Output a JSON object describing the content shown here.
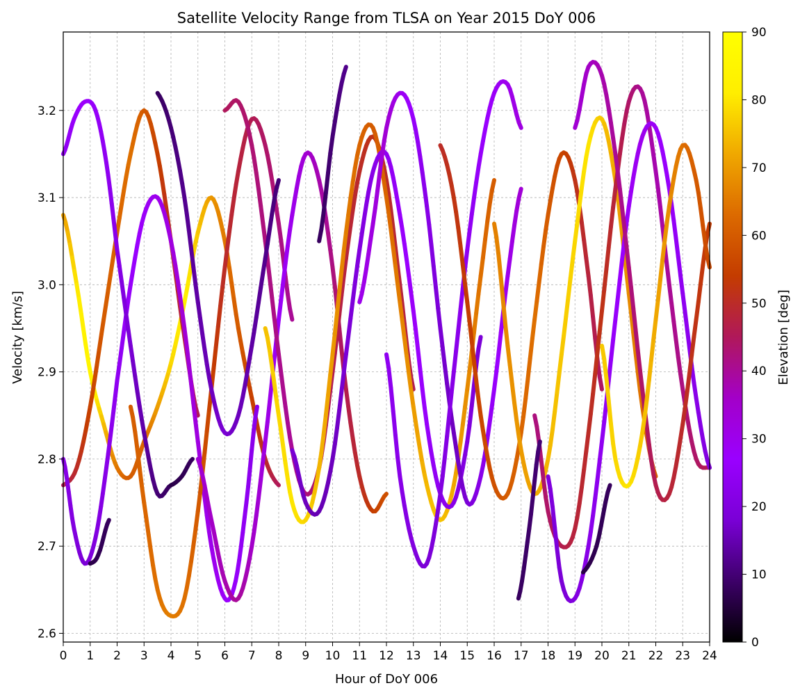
{
  "chart_data": {
    "type": "scatter",
    "title": "Satellite Velocity Range from TLSA on Year 2015 DoY 006",
    "xlabel": "Hour of DoY 006",
    "ylabel": "Velocity [km/s]",
    "xlim": [
      0,
      24
    ],
    "ylim": [
      2.59,
      3.29
    ],
    "xticks": [
      0,
      1,
      2,
      3,
      4,
      5,
      6,
      7,
      8,
      9,
      10,
      11,
      12,
      13,
      14,
      15,
      16,
      17,
      18,
      19,
      20,
      21,
      22,
      23,
      24
    ],
    "xtick_labels": [
      "0",
      "1",
      "2",
      "3",
      "4",
      "5",
      "6",
      "7",
      "8",
      "9",
      "10",
      "11",
      "12",
      "13",
      "14",
      "15",
      "16",
      "17",
      "18",
      "19",
      "20",
      "21",
      "22",
      "23",
      "24"
    ],
    "yticks": [
      2.6,
      2.7,
      2.8,
      2.9,
      3.0,
      3.1,
      3.2
    ],
    "ytick_labels": [
      "2.6",
      "2.7",
      "2.8",
      "2.9",
      "3.0",
      "3.1",
      "3.2"
    ],
    "grid": true,
    "colorbar": {
      "label": "Elevation [deg]",
      "range": [
        0,
        90
      ],
      "ticks": [
        0,
        10,
        20,
        30,
        40,
        50,
        60,
        70,
        80,
        90
      ],
      "tick_labels": [
        "0",
        "10",
        "20",
        "30",
        "40",
        "50",
        "60",
        "70",
        "80",
        "90"
      ],
      "colormap": "gnuplot",
      "stops": [
        "#000000",
        "#3d0069",
        "#7a00d6",
        "#9a00ff",
        "#a300c8",
        "#b0185a",
        "#c43c00",
        "#dc6a00",
        "#f0a800",
        "#ffee00",
        "#ffff00"
      ]
    },
    "series": [
      {
        "x": [
          0.0,
          0.5,
          1.0,
          1.5,
          2.0,
          2.5,
          3.0,
          3.5,
          4.0,
          4.5,
          5.0,
          5.5,
          6.0,
          6.5,
          7.0,
          7.5,
          8.0
        ],
        "y": [
          3.08,
          3.0,
          2.9,
          2.84,
          2.79,
          2.78,
          2.82,
          2.86,
          2.91,
          2.98,
          3.06,
          3.1,
          3.05,
          2.95,
          2.87,
          2.8,
          2.77
        ],
        "elev": [
          70,
          80,
          85,
          75,
          65,
          60,
          62,
          70,
          78,
          82,
          76,
          70,
          65,
          60,
          55,
          50,
          45
        ]
      },
      {
        "x": [
          0.0,
          0.5,
          1.0,
          1.5,
          2.0,
          2.5,
          3.0,
          3.5,
          4.0,
          4.5,
          5.0
        ],
        "y": [
          2.77,
          2.79,
          2.86,
          2.96,
          3.06,
          3.15,
          3.2,
          3.15,
          3.05,
          2.94,
          2.85
        ],
        "elev": [
          45,
          50,
          55,
          60,
          62,
          64,
          60,
          55,
          50,
          48,
          45
        ]
      },
      {
        "x": [
          0.0,
          0.4,
          0.8,
          1.2,
          1.6,
          2.0,
          2.5,
          3.0,
          3.5,
          4.0,
          4.5,
          5.0,
          5.5,
          6.0,
          6.4,
          6.8,
          7.2
        ],
        "y": [
          2.8,
          2.72,
          2.68,
          2.71,
          2.79,
          2.89,
          3.0,
          3.08,
          3.1,
          3.05,
          2.95,
          2.82,
          2.7,
          2.64,
          2.66,
          2.75,
          2.86
        ],
        "elev": [
          22,
          20,
          18,
          20,
          22,
          24,
          26,
          28,
          30,
          32,
          34,
          32,
          30,
          28,
          26,
          24,
          22
        ]
      },
      {
        "x": [
          0.0,
          0.4,
          0.8,
          1.2,
          1.6,
          2.0,
          2.5,
          3.0,
          3.5,
          4.0
        ],
        "y": [
          3.15,
          3.19,
          3.21,
          3.2,
          3.14,
          3.04,
          2.93,
          2.83,
          2.76,
          2.77
        ],
        "elev": [
          24,
          26,
          28,
          26,
          24,
          22,
          18,
          14,
          10,
          8
        ]
      },
      {
        "x": [
          2.5,
          3.0,
          3.5,
          4.0,
          4.5,
          5.0,
          5.5,
          6.0,
          6.5,
          7.0,
          7.5,
          8.0,
          8.5
        ],
        "y": [
          2.86,
          2.75,
          2.65,
          2.62,
          2.64,
          2.74,
          2.88,
          3.02,
          3.13,
          3.19,
          3.16,
          3.07,
          2.96
        ],
        "elev": [
          60,
          62,
          64,
          66,
          64,
          60,
          55,
          50,
          48,
          46,
          44,
          42,
          40
        ]
      },
      {
        "x": [
          5.0,
          5.5,
          6.0,
          6.5,
          7.0,
          7.5,
          8.0,
          8.5,
          9.0,
          9.5,
          10.0,
          10.5,
          11.0,
          11.5,
          12.0
        ],
        "y": [
          2.8,
          2.73,
          2.66,
          2.64,
          2.7,
          2.82,
          2.96,
          3.08,
          3.15,
          3.12,
          3.02,
          2.88,
          2.78,
          2.74,
          2.76
        ],
        "elev": [
          34,
          36,
          38,
          40,
          36,
          32,
          28,
          30,
          34,
          38,
          42,
          46,
          50,
          54,
          58
        ]
      },
      {
        "x": [
          6.0,
          6.5,
          7.0,
          7.5,
          8.0,
          8.5,
          9.0,
          9.5,
          10.0,
          10.5,
          11.0,
          11.5,
          12.0,
          12.5,
          13.0
        ],
        "y": [
          3.2,
          3.21,
          3.16,
          3.05,
          2.92,
          2.81,
          2.76,
          2.79,
          2.9,
          3.03,
          3.13,
          3.17,
          3.12,
          3.0,
          2.88
        ],
        "elev": [
          45,
          44,
          43,
          42,
          41,
          40,
          42,
          44,
          46,
          48,
          50,
          52,
          50,
          48,
          46
        ]
      },
      {
        "x": [
          7.5,
          8.0,
          8.5,
          9.0,
          9.5,
          10.0,
          10.5,
          11.0,
          11.5,
          12.0,
          12.5,
          13.0,
          13.5,
          14.0,
          14.5,
          15.0,
          15.5,
          16.0
        ],
        "y": [
          2.95,
          2.85,
          2.75,
          2.73,
          2.79,
          2.92,
          3.06,
          3.16,
          3.18,
          3.1,
          2.98,
          2.86,
          2.77,
          2.73,
          2.77,
          2.88,
          3.01,
          3.12
        ],
        "elev": [
          75,
          78,
          80,
          78,
          74,
          70,
          66,
          62,
          60,
          62,
          66,
          70,
          74,
          76,
          72,
          68,
          64,
          60
        ]
      },
      {
        "x": [
          8.5,
          9.0,
          9.5,
          10.0,
          10.5,
          11.0,
          11.5,
          12.0,
          12.5,
          13.0,
          13.5,
          14.0,
          14.5,
          15.0,
          15.5
        ],
        "y": [
          2.81,
          2.75,
          2.74,
          2.8,
          2.92,
          3.04,
          3.13,
          3.15,
          3.08,
          2.97,
          2.84,
          2.76,
          2.75,
          2.82,
          2.94
        ],
        "elev": [
          18,
          16,
          15,
          16,
          18,
          20,
          22,
          24,
          26,
          28,
          26,
          24,
          22,
          20,
          18
        ]
      },
      {
        "x": [
          11.0,
          11.5,
          12.0,
          12.5,
          13.0,
          13.5,
          14.0,
          14.5,
          15.0,
          15.5,
          16.0,
          16.5,
          17.0
        ],
        "y": [
          2.98,
          3.07,
          3.18,
          3.22,
          3.19,
          3.09,
          2.95,
          2.83,
          2.75,
          2.78,
          2.88,
          3.01,
          3.11
        ],
        "elev": [
          30,
          32,
          34,
          30,
          26,
          22,
          18,
          16,
          18,
          22,
          26,
          30,
          34
        ]
      },
      {
        "x": [
          12.0,
          12.5,
          13.0,
          13.5,
          14.0,
          14.5,
          15.0,
          15.5,
          16.0,
          16.5,
          17.0
        ],
        "y": [
          2.92,
          2.78,
          2.7,
          2.68,
          2.76,
          2.9,
          3.04,
          3.15,
          3.22,
          3.23,
          3.18
        ],
        "elev": [
          24,
          22,
          20,
          18,
          20,
          22,
          24,
          26,
          28,
          30,
          32
        ]
      },
      {
        "x": [
          14.0,
          14.5,
          15.0,
          15.5,
          16.0,
          16.5,
          17.0,
          17.5,
          18.0,
          18.5,
          19.0,
          19.5,
          20.0
        ],
        "y": [
          3.16,
          3.1,
          2.98,
          2.85,
          2.77,
          2.76,
          2.83,
          2.96,
          3.08,
          3.15,
          3.12,
          3.01,
          2.88
        ],
        "elev": [
          50,
          52,
          54,
          56,
          58,
          60,
          62,
          64,
          60,
          56,
          52,
          48,
          44
        ]
      },
      {
        "x": [
          16.0,
          16.5,
          17.0,
          17.5,
          18.0,
          18.5,
          19.0,
          19.5,
          20.0,
          20.5,
          21.0,
          21.5,
          22.0
        ],
        "y": [
          3.07,
          2.93,
          2.81,
          2.76,
          2.8,
          2.92,
          3.05,
          3.16,
          3.19,
          3.12,
          2.99,
          2.86,
          2.78
        ],
        "elev": [
          66,
          68,
          70,
          72,
          74,
          76,
          78,
          80,
          76,
          72,
          68,
          64,
          60
        ]
      },
      {
        "x": [
          17.5,
          18.0,
          18.5,
          19.0,
          19.5,
          20.0,
          20.5,
          21.0,
          21.5,
          22.0,
          22.5,
          23.0,
          23.5,
          24.0
        ],
        "y": [
          2.85,
          2.74,
          2.7,
          2.72,
          2.83,
          2.97,
          3.11,
          3.21,
          3.22,
          3.13,
          3.0,
          2.88,
          2.8,
          2.79
        ],
        "elev": [
          42,
          44,
          46,
          48,
          50,
          52,
          48,
          44,
          40,
          38,
          40,
          42,
          44,
          46
        ]
      },
      {
        "x": [
          18.0,
          18.5,
          19.0,
          19.5,
          20.0,
          20.5,
          21.0,
          21.5,
          22.0,
          22.5,
          23.0,
          23.5,
          24.0
        ],
        "y": [
          2.78,
          2.66,
          2.64,
          2.7,
          2.82,
          2.96,
          3.09,
          3.17,
          3.18,
          3.11,
          2.99,
          2.87,
          2.79
        ],
        "elev": [
          20,
          18,
          20,
          22,
          24,
          26,
          28,
          30,
          28,
          26,
          24,
          22,
          20
        ]
      },
      {
        "x": [
          19.0,
          19.5,
          20.0,
          20.5,
          21.0,
          21.5,
          22.0,
          22.5,
          23.0,
          23.5,
          24.0
        ],
        "y": [
          3.18,
          3.25,
          3.24,
          3.15,
          3.02,
          2.88,
          2.77,
          2.76,
          2.84,
          2.96,
          3.07
        ],
        "elev": [
          34,
          36,
          38,
          40,
          42,
          44,
          46,
          48,
          50,
          52,
          54
        ]
      },
      {
        "x": [
          20.0,
          20.5,
          21.0,
          21.5,
          22.0,
          22.5,
          23.0,
          23.5,
          24.0
        ],
        "y": [
          2.93,
          2.8,
          2.77,
          2.83,
          2.96,
          3.09,
          3.16,
          3.12,
          3.02
        ],
        "elev": [
          76,
          78,
          80,
          76,
          72,
          68,
          64,
          60,
          56
        ]
      },
      {
        "x": [
          3.5,
          4.0,
          4.5,
          5.0,
          5.5,
          6.0,
          6.5,
          7.0,
          7.5,
          8.0
        ],
        "y": [
          3.22,
          3.18,
          3.1,
          2.98,
          2.88,
          2.83,
          2.85,
          2.93,
          3.03,
          3.12
        ],
        "elev": [
          8,
          10,
          12,
          14,
          16,
          18,
          16,
          14,
          12,
          10
        ]
      },
      {
        "x": [
          9.5,
          10.0,
          10.5
        ],
        "y": [
          3.05,
          3.17,
          3.25
        ],
        "elev": [
          8,
          10,
          12
        ]
      },
      {
        "x": [
          16.9,
          17.3,
          17.7
        ],
        "y": [
          2.64,
          2.72,
          2.82
        ],
        "elev": [
          8,
          9,
          10
        ]
      },
      {
        "x": [
          1.0,
          1.3,
          1.7
        ],
        "y": [
          2.68,
          2.69,
          2.73
        ],
        "elev": [
          6,
          7,
          8
        ]
      },
      {
        "x": [
          4.0,
          4.4,
          4.8
        ],
        "y": [
          2.77,
          2.78,
          2.8
        ],
        "elev": [
          6,
          7,
          8
        ]
      },
      {
        "x": [
          19.3,
          19.8,
          20.3
        ],
        "y": [
          2.67,
          2.7,
          2.77
        ],
        "elev": [
          6,
          7,
          8
        ]
      }
    ]
  }
}
